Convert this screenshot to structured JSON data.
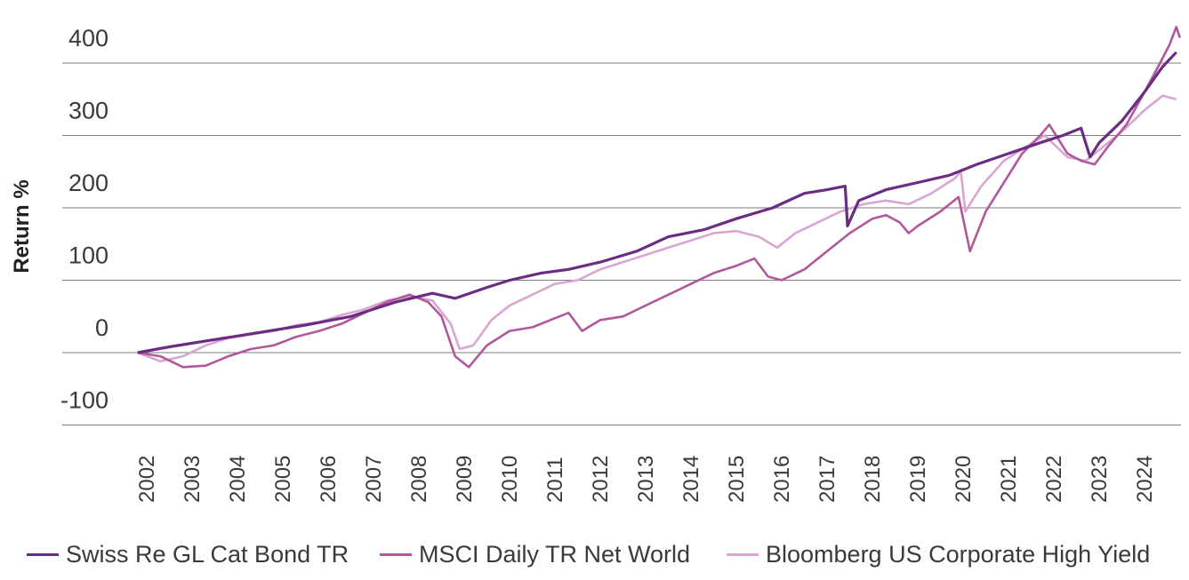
{
  "chart_data": {
    "type": "line",
    "title": "",
    "ylabel": "Return %",
    "xlabel": "",
    "ylim": [
      -100,
      400
    ],
    "yticks": [
      "400",
      "300",
      "200",
      "100",
      "0",
      "-100"
    ],
    "ytick_values": [
      400,
      300,
      200,
      100,
      0,
      -100
    ],
    "xticks": [
      "2002",
      "2003",
      "2004",
      "2005",
      "2006",
      "2007",
      "2008",
      "2009",
      "2010",
      "2011",
      "2012",
      "2013",
      "2014",
      "2015",
      "2016",
      "2017",
      "2018",
      "2019",
      "2020",
      "2021",
      "2022",
      "2023",
      "2024"
    ],
    "xlim": [
      2001.5,
      2025.0
    ],
    "legend_position": "bottom",
    "series": [
      {
        "name": "Swiss Re GL Cat Bond TR",
        "color": "#6b2c83",
        "points": [
          [
            2001.8,
            0
          ],
          [
            2002.5,
            8
          ],
          [
            2003.5,
            18
          ],
          [
            2004.5,
            28
          ],
          [
            2005.5,
            38
          ],
          [
            2006.5,
            50
          ],
          [
            2007.5,
            70
          ],
          [
            2008.3,
            82
          ],
          [
            2008.8,
            75
          ],
          [
            2009.5,
            90
          ],
          [
            2010.0,
            100
          ],
          [
            2010.7,
            110
          ],
          [
            2011.3,
            115
          ],
          [
            2012.0,
            125
          ],
          [
            2012.8,
            140
          ],
          [
            2013.5,
            160
          ],
          [
            2014.3,
            170
          ],
          [
            2015.0,
            185
          ],
          [
            2015.8,
            200
          ],
          [
            2016.5,
            220
          ],
          [
            2017.0,
            225
          ],
          [
            2017.4,
            230
          ],
          [
            2017.45,
            175
          ],
          [
            2017.7,
            210
          ],
          [
            2018.3,
            225
          ],
          [
            2019.0,
            235
          ],
          [
            2019.7,
            245
          ],
          [
            2020.3,
            260
          ],
          [
            2021.0,
            275
          ],
          [
            2021.7,
            290
          ],
          [
            2022.2,
            300
          ],
          [
            2022.6,
            310
          ],
          [
            2022.8,
            270
          ],
          [
            2023.0,
            290
          ],
          [
            2023.5,
            320
          ],
          [
            2024.0,
            360
          ],
          [
            2024.4,
            395
          ],
          [
            2024.7,
            415
          ]
        ]
      },
      {
        "name": "MSCI Daily TR Net World",
        "color": "#b0589b",
        "points": [
          [
            2001.8,
            0
          ],
          [
            2002.3,
            -5
          ],
          [
            2002.8,
            -20
          ],
          [
            2003.3,
            -18
          ],
          [
            2003.8,
            -5
          ],
          [
            2004.3,
            5
          ],
          [
            2004.8,
            10
          ],
          [
            2005.3,
            22
          ],
          [
            2005.8,
            30
          ],
          [
            2006.3,
            40
          ],
          [
            2006.8,
            55
          ],
          [
            2007.3,
            70
          ],
          [
            2007.8,
            80
          ],
          [
            2008.2,
            70
          ],
          [
            2008.5,
            50
          ],
          [
            2008.8,
            -5
          ],
          [
            2009.1,
            -20
          ],
          [
            2009.5,
            10
          ],
          [
            2010.0,
            30
          ],
          [
            2010.5,
            35
          ],
          [
            2010.9,
            45
          ],
          [
            2011.3,
            55
          ],
          [
            2011.6,
            30
          ],
          [
            2012.0,
            45
          ],
          [
            2012.5,
            50
          ],
          [
            2013.0,
            65
          ],
          [
            2013.5,
            80
          ],
          [
            2014.0,
            95
          ],
          [
            2014.5,
            110
          ],
          [
            2015.0,
            120
          ],
          [
            2015.4,
            130
          ],
          [
            2015.7,
            105
          ],
          [
            2016.0,
            100
          ],
          [
            2016.5,
            115
          ],
          [
            2017.0,
            140
          ],
          [
            2017.5,
            165
          ],
          [
            2018.0,
            185
          ],
          [
            2018.3,
            190
          ],
          [
            2018.6,
            180
          ],
          [
            2018.8,
            165
          ],
          [
            2019.0,
            175
          ],
          [
            2019.5,
            195
          ],
          [
            2019.9,
            215
          ],
          [
            2020.15,
            140
          ],
          [
            2020.5,
            195
          ],
          [
            2020.9,
            235
          ],
          [
            2021.3,
            275
          ],
          [
            2021.7,
            300
          ],
          [
            2021.9,
            315
          ],
          [
            2022.3,
            275
          ],
          [
            2022.6,
            265
          ],
          [
            2022.9,
            260
          ],
          [
            2023.2,
            285
          ],
          [
            2023.6,
            315
          ],
          [
            2024.0,
            360
          ],
          [
            2024.3,
            395
          ],
          [
            2024.55,
            425
          ],
          [
            2024.7,
            450
          ],
          [
            2024.78,
            435
          ]
        ]
      },
      {
        "name": "Bloomberg US Corporate High Yield",
        "color": "#d9a6d3",
        "points": [
          [
            2001.8,
            0
          ],
          [
            2002.3,
            -12
          ],
          [
            2002.8,
            -5
          ],
          [
            2003.3,
            10
          ],
          [
            2003.8,
            20
          ],
          [
            2004.3,
            25
          ],
          [
            2004.8,
            30
          ],
          [
            2005.3,
            38
          ],
          [
            2005.8,
            42
          ],
          [
            2006.3,
            52
          ],
          [
            2006.8,
            60
          ],
          [
            2007.3,
            72
          ],
          [
            2007.8,
            78
          ],
          [
            2008.3,
            72
          ],
          [
            2008.7,
            40
          ],
          [
            2008.9,
            5
          ],
          [
            2009.2,
            10
          ],
          [
            2009.6,
            45
          ],
          [
            2010.0,
            65
          ],
          [
            2010.5,
            80
          ],
          [
            2011.0,
            95
          ],
          [
            2011.5,
            100
          ],
          [
            2012.0,
            115
          ],
          [
            2012.5,
            125
          ],
          [
            2013.0,
            135
          ],
          [
            2013.5,
            145
          ],
          [
            2014.0,
            155
          ],
          [
            2014.5,
            165
          ],
          [
            2015.0,
            168
          ],
          [
            2015.5,
            160
          ],
          [
            2015.9,
            145
          ],
          [
            2016.3,
            165
          ],
          [
            2016.8,
            180
          ],
          [
            2017.3,
            195
          ],
          [
            2017.8,
            205
          ],
          [
            2018.3,
            210
          ],
          [
            2018.8,
            205
          ],
          [
            2019.3,
            220
          ],
          [
            2019.8,
            240
          ],
          [
            2019.95,
            250
          ],
          [
            2020.05,
            195
          ],
          [
            2020.4,
            230
          ],
          [
            2020.9,
            265
          ],
          [
            2021.4,
            285
          ],
          [
            2021.8,
            300
          ],
          [
            2022.3,
            270
          ],
          [
            2022.7,
            265
          ],
          [
            2023.0,
            280
          ],
          [
            2023.5,
            305
          ],
          [
            2024.0,
            335
          ],
          [
            2024.4,
            355
          ],
          [
            2024.7,
            350
          ]
        ]
      }
    ]
  }
}
